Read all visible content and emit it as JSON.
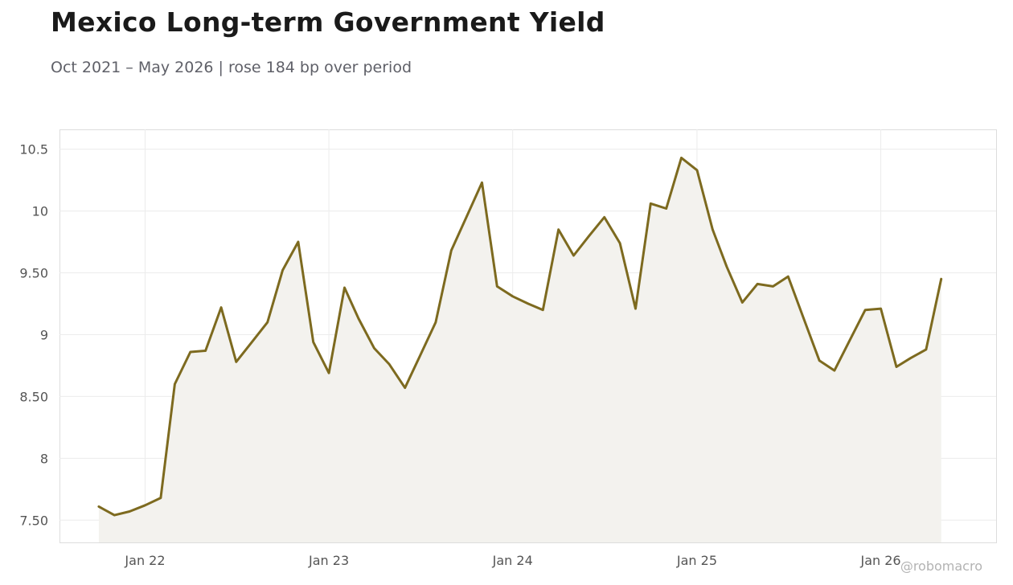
{
  "header": {
    "title": "Mexico Long-term Government Yield",
    "subtitle": "Oct 2021 – May 2026 | rose 184 bp over period"
  },
  "watermark": "@robomacro",
  "colors": {
    "line": "#7d6a1f",
    "area": "#f3f2ee",
    "grid": "#ececec",
    "frame": "#dddddd"
  },
  "chart_data": {
    "type": "area",
    "title": "Mexico Long-term Government Yield",
    "subtitle": "Oct 2021 – May 2026 | rose 184 bp over period",
    "xlabel": "",
    "ylabel": "",
    "xlim": [
      "2021-07-15",
      "2026-08-18"
    ],
    "ylim": [
      7.32,
      10.66
    ],
    "grid": true,
    "legend": "none",
    "y_ticks": [
      {
        "value": 7.5,
        "label": "7.50"
      },
      {
        "value": 8,
        "label": "8"
      },
      {
        "value": 8.5,
        "label": "8.50"
      },
      {
        "value": 9,
        "label": "9"
      },
      {
        "value": 9.5,
        "label": "9.50"
      },
      {
        "value": 10,
        "label": "10"
      },
      {
        "value": 10.5,
        "label": "10.5"
      }
    ],
    "x_ticks": [
      {
        "date": "2022-01-01",
        "label": "Jan 22"
      },
      {
        "date": "2023-01-01",
        "label": "Jan 23"
      },
      {
        "date": "2024-01-01",
        "label": "Jan 24"
      },
      {
        "date": "2025-01-01",
        "label": "Jan 25"
      },
      {
        "date": "2026-01-01",
        "label": "Jan 26"
      }
    ],
    "series": [
      {
        "x": [
          "2021-10-01",
          "2021-11-01",
          "2021-12-01",
          "2022-01-01",
          "2022-02-01",
          "2022-03-01",
          "2022-04-01",
          "2022-05-01",
          "2022-06-01",
          "2022-07-01",
          "2022-08-01",
          "2022-09-01",
          "2022-10-01",
          "2022-11-01",
          "2022-12-01",
          "2023-01-01",
          "2023-02-01",
          "2023-03-01",
          "2023-04-01",
          "2023-05-01",
          "2023-06-01",
          "2023-07-01",
          "2023-08-01",
          "2023-09-01",
          "2023-10-01",
          "2023-11-01",
          "2023-12-01",
          "2024-01-01",
          "2024-02-01",
          "2024-03-01",
          "2024-04-01",
          "2024-05-01",
          "2024-06-01",
          "2024-07-01",
          "2024-08-01",
          "2024-09-01",
          "2024-10-01",
          "2024-11-01",
          "2024-12-01",
          "2025-01-01",
          "2025-02-01",
          "2025-03-01",
          "2025-04-01",
          "2025-05-01",
          "2025-06-01",
          "2025-07-01",
          "2025-08-01",
          "2025-09-01",
          "2025-10-01",
          "2025-11-01",
          "2025-12-01",
          "2026-01-01",
          "2026-02-01",
          "2026-03-01",
          "2026-04-01",
          "2026-05-01"
        ],
        "values": [
          7.61,
          7.54,
          7.57,
          7.62,
          7.68,
          8.6,
          8.86,
          8.87,
          9.22,
          8.78,
          8.94,
          9.1,
          9.52,
          9.75,
          8.94,
          8.69,
          9.38,
          9.13,
          8.89,
          8.76,
          8.57,
          8.83,
          9.1,
          9.68,
          9.95,
          10.23,
          9.39,
          9.31,
          9.25,
          9.2,
          9.85,
          9.64,
          9.8,
          9.95,
          9.74,
          9.21,
          10.06,
          10.02,
          10.43,
          10.33,
          9.85,
          9.55,
          9.26,
          9.41,
          9.39,
          9.47,
          9.13,
          8.79,
          8.71,
          8.96,
          9.2,
          9.21,
          8.74,
          8.81,
          8.88,
          9.45
        ]
      }
    ]
  }
}
